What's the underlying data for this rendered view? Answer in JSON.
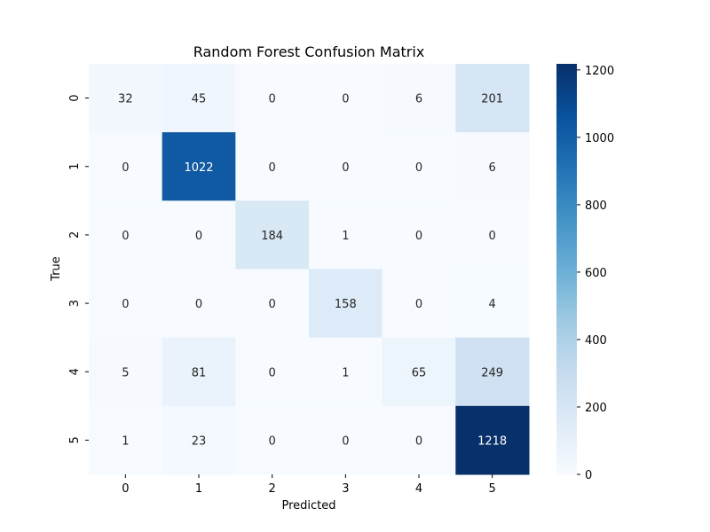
{
  "chart_data": {
    "type": "heatmap",
    "title": "Random Forest Confusion Matrix",
    "xlabel": "Predicted",
    "ylabel": "True",
    "x_categories": [
      "0",
      "1",
      "2",
      "3",
      "4",
      "5"
    ],
    "y_categories": [
      "0",
      "1",
      "2",
      "3",
      "4",
      "5"
    ],
    "values": [
      [
        32,
        45,
        0,
        0,
        6,
        201
      ],
      [
        0,
        1022,
        0,
        0,
        0,
        6
      ],
      [
        0,
        0,
        184,
        1,
        0,
        0
      ],
      [
        0,
        0,
        0,
        158,
        0,
        4
      ],
      [
        5,
        81,
        0,
        1,
        65,
        249
      ],
      [
        1,
        23,
        0,
        0,
        0,
        1218
      ]
    ],
    "colorbar": {
      "colormap": "Blues",
      "range": [
        0,
        1218
      ],
      "ticks": [
        0,
        200,
        400,
        600,
        800,
        1000,
        1200
      ],
      "tick_labels": [
        "0",
        "200",
        "400",
        "600",
        "800",
        "1000",
        "1200"
      ],
      "placement": "right"
    },
    "annotations": true,
    "grid": false
  }
}
